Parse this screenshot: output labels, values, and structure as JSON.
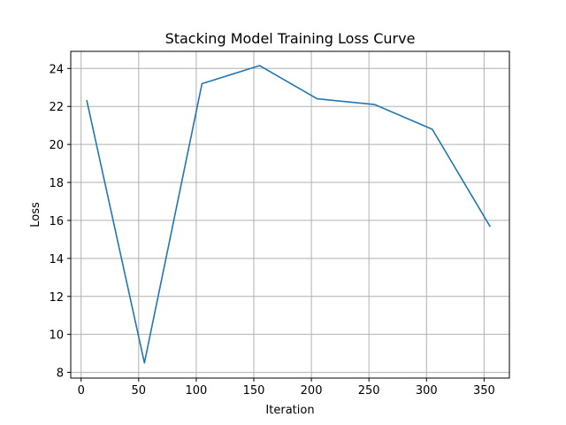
{
  "chart_data": {
    "type": "line",
    "title": "Stacking Model Training Loss Curve",
    "xlabel": "Iteration",
    "ylabel": "Loss",
    "xlim": [
      -9,
      372
    ],
    "ylim": [
      7.7,
      24.9
    ],
    "xticks": [
      0,
      50,
      100,
      150,
      200,
      250,
      300,
      350
    ],
    "yticks": [
      8,
      10,
      12,
      14,
      16,
      18,
      20,
      22,
      24
    ],
    "grid": true,
    "series": [
      {
        "color": "#1f77b4",
        "x": [
          5,
          55,
          105,
          155,
          205,
          255,
          305,
          355
        ],
        "y": [
          22.3,
          8.5,
          23.2,
          24.15,
          22.4,
          22.1,
          20.8,
          15.7
        ]
      }
    ]
  }
}
